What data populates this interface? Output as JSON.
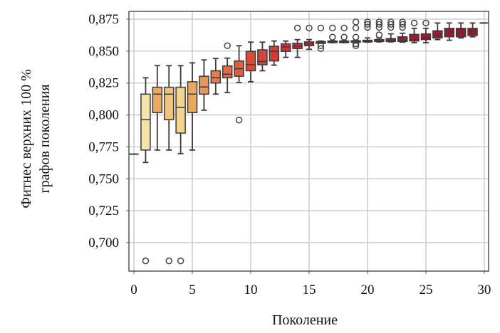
{
  "chart_data": {
    "type": "box",
    "title": "",
    "xlabel": "Поколение",
    "ylabel": [
      "Фитнес верхних 100 %",
      "графов поколения"
    ],
    "xlim": [
      -0.43,
      30.37
    ],
    "ylim": [
      0.6777,
      0.8811
    ],
    "xticks": [
      0,
      5,
      10,
      15,
      20,
      25,
      30
    ],
    "xtick_labels": [
      "0",
      "5",
      "10",
      "15",
      "20",
      "25",
      "30"
    ],
    "yticks": [
      0.7,
      0.725,
      0.75,
      0.775,
      0.8,
      0.825,
      0.85,
      0.875
    ],
    "ytick_labels": [
      "0,700",
      "0,725",
      "0,750",
      "0,775",
      "0,800",
      "0,825",
      "0,850",
      "0,875"
    ],
    "grid": true,
    "colors": {
      "edge": "#3a3a3a",
      "grid": "#cccccc",
      "outlier": "#444444"
    },
    "boxes": [
      {
        "x": 0,
        "low": 0.7693,
        "q1": 0.7693,
        "med": 0.7693,
        "q3": 0.7693,
        "high": 0.7693,
        "outliers": [],
        "color": "#f5e2a6"
      },
      {
        "x": 1,
        "low": 0.7628,
        "q1": 0.7725,
        "med": 0.7963,
        "q3": 0.8163,
        "high": 0.8291,
        "outliers": [
          0.6857
        ],
        "color": "#f5e2a6"
      },
      {
        "x": 2,
        "low": 0.7725,
        "q1": 0.8018,
        "med": 0.8163,
        "q3": 0.8217,
        "high": 0.8386,
        "outliers": [],
        "color": "#eba85e"
      },
      {
        "x": 3,
        "low": 0.7725,
        "q1": 0.7963,
        "med": 0.8163,
        "q3": 0.8217,
        "high": 0.8386,
        "outliers": [
          0.6857
        ],
        "color": "#efc47e"
      },
      {
        "x": 4,
        "low": 0.7697,
        "q1": 0.7858,
        "med": 0.8059,
        "q3": 0.8217,
        "high": 0.8386,
        "outliers": [
          0.6857
        ],
        "color": "#f2d48e"
      },
      {
        "x": 5,
        "low": 0.7725,
        "q1": 0.8018,
        "med": 0.8163,
        "q3": 0.826,
        "high": 0.8408,
        "outliers": [],
        "color": "#eba85e"
      },
      {
        "x": 6,
        "low": 0.8037,
        "q1": 0.8163,
        "med": 0.8219,
        "q3": 0.8303,
        "high": 0.8431,
        "outliers": [],
        "color": "#e9955a"
      },
      {
        "x": 7,
        "low": 0.8163,
        "q1": 0.825,
        "med": 0.8291,
        "q3": 0.8346,
        "high": 0.8442,
        "outliers": [],
        "color": "#e67a4b"
      },
      {
        "x": 8,
        "low": 0.8176,
        "q1": 0.8291,
        "med": 0.8319,
        "q3": 0.8384,
        "high": 0.8445,
        "outliers": [
          0.8542
        ],
        "color": "#e36b45"
      },
      {
        "x": 9,
        "low": 0.8254,
        "q1": 0.8303,
        "med": 0.8362,
        "q3": 0.8423,
        "high": 0.8542,
        "outliers": [
          0.796
        ],
        "color": "#e05e40"
      },
      {
        "x": 10,
        "low": 0.826,
        "q1": 0.8346,
        "med": 0.8393,
        "q3": 0.8498,
        "high": 0.857,
        "outliers": [],
        "color": "#dd4b38"
      },
      {
        "x": 11,
        "low": 0.8346,
        "q1": 0.8393,
        "med": 0.8418,
        "q3": 0.851,
        "high": 0.857,
        "outliers": [],
        "color": "#d9443a"
      },
      {
        "x": 12,
        "low": 0.839,
        "q1": 0.8423,
        "med": 0.8498,
        "q3": 0.8538,
        "high": 0.8579,
        "outliers": [],
        "color": "#d43a36"
      },
      {
        "x": 13,
        "low": 0.8451,
        "q1": 0.8498,
        "med": 0.8533,
        "q3": 0.8557,
        "high": 0.8579,
        "outliers": [],
        "color": "#cf3336"
      },
      {
        "x": 14,
        "low": 0.8451,
        "q1": 0.852,
        "med": 0.8538,
        "q3": 0.8561,
        "high": 0.859,
        "outliers": [
          0.8681
        ],
        "color": "#ca2d36"
      },
      {
        "x": 15,
        "low": 0.8514,
        "q1": 0.8542,
        "med": 0.8557,
        "q3": 0.8572,
        "high": 0.859,
        "outliers": [
          0.8681
        ],
        "color": "#c52835"
      },
      {
        "x": 16,
        "low": 0.8561,
        "q1": 0.8561,
        "med": 0.8567,
        "q3": 0.8575,
        "high": 0.8579,
        "outliers": [
          0.8681,
          0.8542,
          0.852
        ],
        "color": "#c02434"
      },
      {
        "x": 17,
        "low": 0.8566,
        "q1": 0.8567,
        "med": 0.8575,
        "q3": 0.8579,
        "high": 0.8581,
        "outliers": [
          0.8681,
          0.8609
        ],
        "color": "#bc2133"
      },
      {
        "x": 18,
        "low": 0.8566,
        "q1": 0.8567,
        "med": 0.8575,
        "q3": 0.8579,
        "high": 0.8581,
        "outliers": [
          0.8681,
          0.8609
        ],
        "color": "#b81f32"
      },
      {
        "x": 19,
        "low": 0.8566,
        "q1": 0.857,
        "med": 0.8575,
        "q3": 0.8581,
        "high": 0.8585,
        "outliers": [
          0.8728,
          0.8681,
          0.8609,
          0.8557,
          0.8542
        ],
        "color": "#b41d31"
      },
      {
        "x": 20,
        "low": 0.857,
        "q1": 0.8572,
        "med": 0.8577,
        "q3": 0.8585,
        "high": 0.8603,
        "outliers": [
          0.8728,
          0.8709,
          0.8686
        ],
        "color": "#b01b30"
      },
      {
        "x": 21,
        "low": 0.8572,
        "q1": 0.8575,
        "med": 0.858,
        "q3": 0.859,
        "high": 0.8603,
        "outliers": [
          0.8728,
          0.8709,
          0.8686,
          0.8627
        ],
        "color": "#ad1a30"
      },
      {
        "x": 22,
        "low": 0.8572,
        "q1": 0.8575,
        "med": 0.8582,
        "q3": 0.8598,
        "high": 0.8635,
        "outliers": [
          0.8728,
          0.8709,
          0.8686
        ],
        "color": "#aa192f"
      },
      {
        "x": 23,
        "low": 0.857,
        "q1": 0.8575,
        "med": 0.8585,
        "q3": 0.8612,
        "high": 0.864,
        "outliers": [
          0.8728,
          0.8709,
          0.8686
        ],
        "color": "#a8182e"
      },
      {
        "x": 24,
        "low": 0.8566,
        "q1": 0.8579,
        "med": 0.859,
        "q3": 0.8631,
        "high": 0.8678,
        "outliers": [
          0.872
        ],
        "color": "#a6182e"
      },
      {
        "x": 25,
        "low": 0.8566,
        "q1": 0.859,
        "med": 0.8603,
        "q3": 0.8635,
        "high": 0.8678,
        "outliers": [
          0.872
        ],
        "color": "#a4172d"
      },
      {
        "x": 26,
        "low": 0.859,
        "q1": 0.8603,
        "med": 0.8622,
        "q3": 0.8659,
        "high": 0.872,
        "outliers": [],
        "color": "#a2172d"
      },
      {
        "x": 27,
        "low": 0.8585,
        "q1": 0.8612,
        "med": 0.8644,
        "q3": 0.8678,
        "high": 0.872,
        "outliers": [],
        "color": "#a0162c"
      },
      {
        "x": 28,
        "low": 0.8603,
        "q1": 0.8612,
        "med": 0.864,
        "q3": 0.8678,
        "high": 0.872,
        "outliers": [],
        "color": "#9e162c"
      },
      {
        "x": 29,
        "low": 0.8612,
        "q1": 0.8622,
        "med": 0.8654,
        "q3": 0.8678,
        "high": 0.872,
        "outliers": [],
        "color": "#9c152b"
      },
      {
        "x": 30,
        "low": 0.872,
        "q1": 0.872,
        "med": 0.872,
        "q3": 0.872,
        "high": 0.872,
        "outliers": [],
        "color": "#9c152b"
      }
    ]
  }
}
